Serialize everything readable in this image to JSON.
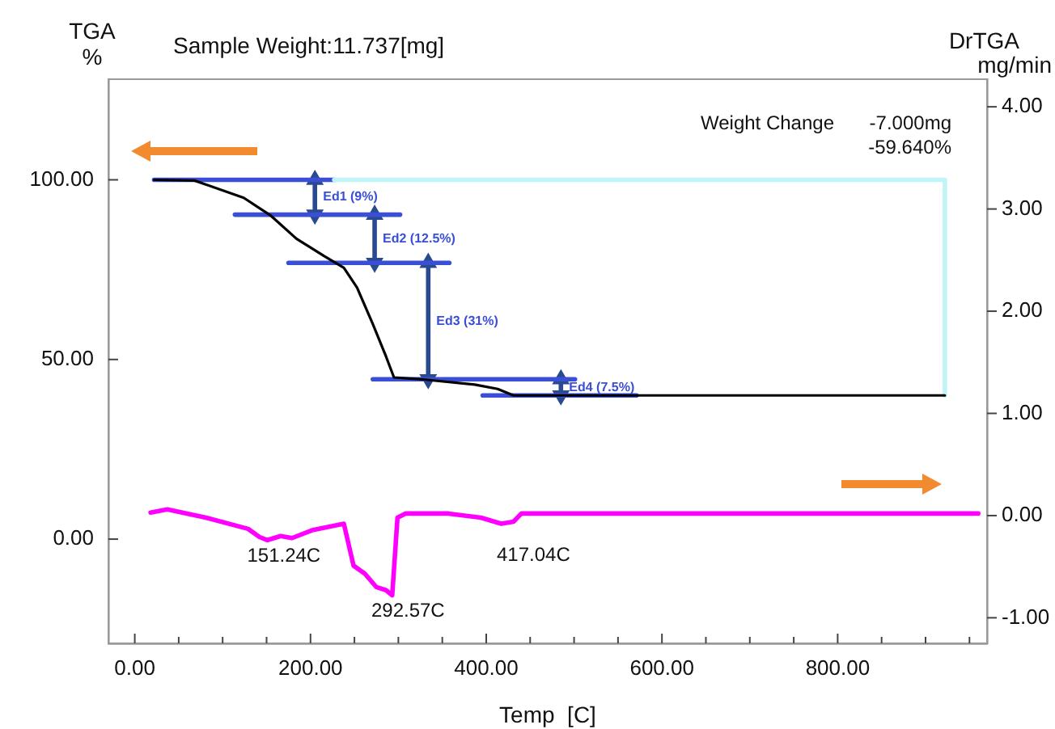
{
  "chart_data": {
    "type": "line",
    "title": "Sample Weight:11.737[mg]",
    "xlabel": "Temp  [C]",
    "ylabel": "TGA %",
    "y2label": "DrTGA mg/min",
    "xlim": [
      -30,
      970
    ],
    "xticks": [
      {
        "value": 0,
        "label": "0.00"
      },
      {
        "value": 50,
        "label": null
      },
      {
        "value": 100,
        "label": null
      },
      {
        "value": 150,
        "label": null
      },
      {
        "value": 200,
        "label": "200.00"
      },
      {
        "value": 250,
        "label": null
      },
      {
        "value": 300,
        "label": null
      },
      {
        "value": 350,
        "label": null
      },
      {
        "value": 400,
        "label": "400.00"
      },
      {
        "value": 450,
        "label": null
      },
      {
        "value": 500,
        "label": null
      },
      {
        "value": 550,
        "label": null
      },
      {
        "value": 600,
        "label": "600.00"
      },
      {
        "value": 650,
        "label": null
      },
      {
        "value": 700,
        "label": null
      },
      {
        "value": 750,
        "label": null
      },
      {
        "value": 800,
        "label": "800.00"
      },
      {
        "value": 850,
        "label": null
      },
      {
        "value": 900,
        "label": null
      },
      {
        "value": 950,
        "label": null
      }
    ],
    "ylim": [
      -29,
      128
    ],
    "yticks": [
      {
        "value": 0,
        "label": "0.00"
      },
      {
        "value": 50,
        "label": "50.00"
      },
      {
        "value": 100,
        "label": "100.00"
      }
    ],
    "y2lim": [
      -1.25,
      4.27
    ],
    "y2ticks": [
      {
        "value": -1,
        "label": "-1.00"
      },
      {
        "value": 0,
        "label": "0.00"
      },
      {
        "value": 1,
        "label": "1.00"
      },
      {
        "value": 2,
        "label": "2.00"
      },
      {
        "value": 3,
        "label": "3.00"
      },
      {
        "value": 4,
        "label": "4.00"
      }
    ],
    "grid": false,
    "legend": false,
    "marker": "none",
    "series": [
      {
        "color": "#000000",
        "x": [
          22,
          68,
          124,
          155,
          184,
          216,
          238,
          253,
          271,
          286,
          295,
          326,
          387,
          413,
          431,
          600,
          922
        ],
        "values": [
          100,
          99.8,
          95,
          90,
          83.6,
          78.7,
          75.5,
          70,
          59.8,
          50.8,
          45,
          44.5,
          43,
          41.8,
          40,
          40,
          40
        ]
      },
      {
        "color": "#ff00ff",
        "axis": "y2",
        "x": [
          18,
          37,
          81,
          129,
          142,
          151,
          166,
          179,
          203,
          238,
          249,
          262,
          275,
          286,
          293,
          299,
          308,
          357,
          394,
          417.04,
          431,
          440,
          600,
          960
        ],
        "values": [
          0.03,
          0.06,
          -0.02,
          -0.13,
          -0.21,
          -0.24,
          -0.2,
          -0.22,
          -0.14,
          -0.08,
          -0.49,
          -0.57,
          -0.7,
          -0.73,
          -0.78,
          -0.02,
          0.02,
          0.02,
          -0.02,
          -0.08,
          -0.06,
          0.02,
          0.02,
          0.02
        ]
      },
      {
        "color": "#bff5f8",
        "x": [
          227,
          922,
          922
        ],
        "values": [
          100,
          100,
          40
        ]
      },
      {
        "color": "#3a4fd6",
        "x": [
          22,
          227
        ],
        "values": [
          100,
          100
        ]
      },
      {
        "color": "#3a4fd6",
        "x": [
          114,
          302
        ],
        "values": [
          90.3,
          90.3
        ]
      },
      {
        "color": "#3a4fd6",
        "x": [
          175,
          358
        ],
        "values": [
          76.9,
          76.9
        ]
      },
      {
        "color": "#3a4fd6",
        "x": [
          271,
          501
        ],
        "values": [
          44.5,
          44.5
        ]
      },
      {
        "color": "#3a4fd6",
        "x": [
          396,
          571
        ],
        "values": [
          40,
          40
        ]
      },
      {
        "color": "#2a4a8f",
        "marker": "triangle",
        "x": [
          205,
          205
        ],
        "values": [
          100,
          90.3
        ]
      },
      {
        "color": "#2a4a8f",
        "marker": "triangle",
        "x": [
          273,
          273
        ],
        "values": [
          90.3,
          76.9
        ]
      },
      {
        "color": "#2a4a8f",
        "marker": "triangle",
        "x": [
          334,
          334
        ],
        "values": [
          76.9,
          44.5
        ]
      },
      {
        "color": "#2a4a8f",
        "marker": "triangle",
        "x": [
          485,
          485
        ],
        "values": [
          44.5,
          40
        ]
      }
    ],
    "annotations": [
      "Weight Change",
      "-7.000mg",
      "-59.640%",
      {
        "text": "Ed1 (9%)",
        "x": 205,
        "y": 95.15
      },
      {
        "text": "Ed2 (12.5%)",
        "x": 273,
        "y": 83.6
      },
      {
        "text": "Ed3 (31%)",
        "x": 334,
        "y": 60.7
      },
      {
        "text": "Ed4 (7.5%)",
        "x": 485,
        "y": 42.25
      },
      {
        "text": "151.24C",
        "x": 151.24,
        "y": -0.24
      },
      {
        "text": "292.57C",
        "x": 292.57,
        "y": -0.78
      },
      "417.04C"
    ]
  }
}
